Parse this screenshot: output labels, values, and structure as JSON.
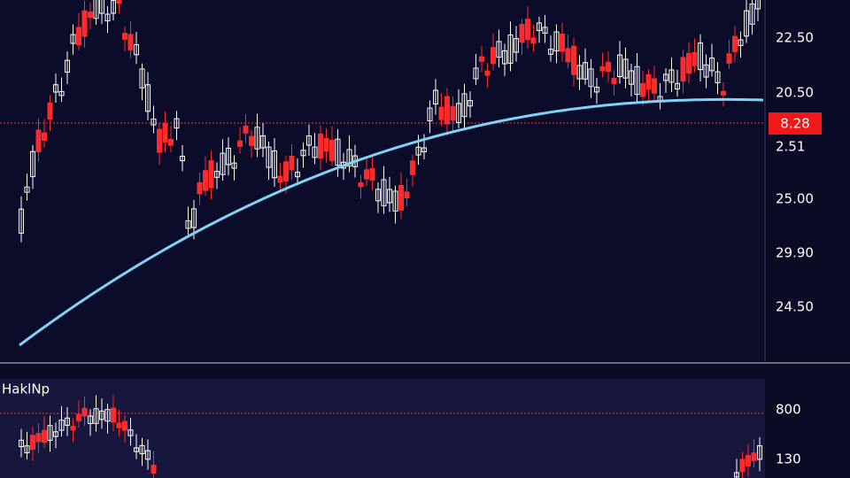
{
  "price_pane": {
    "axis_labels": [
      "22.50",
      "20.50",
      "2.51",
      "25.00",
      "29.90",
      "24.50"
    ],
    "current_price": "8.28"
  },
  "indicator_pane": {
    "title": "HaklNp",
    "axis_labels": [
      "800",
      "130"
    ]
  }
}
